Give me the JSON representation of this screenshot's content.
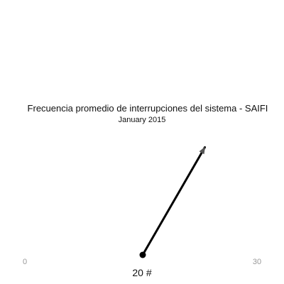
{
  "chart_data": {
    "type": "gauge",
    "title": "Frecuencia promedio de interrupciones del sistema - SAIFI",
    "subtitle": "January 2015",
    "min": 0,
    "max": 30,
    "value": 20,
    "min_label": "0",
    "max_label": "30",
    "value_label": "20 #",
    "needle_color": "#000000"
  }
}
